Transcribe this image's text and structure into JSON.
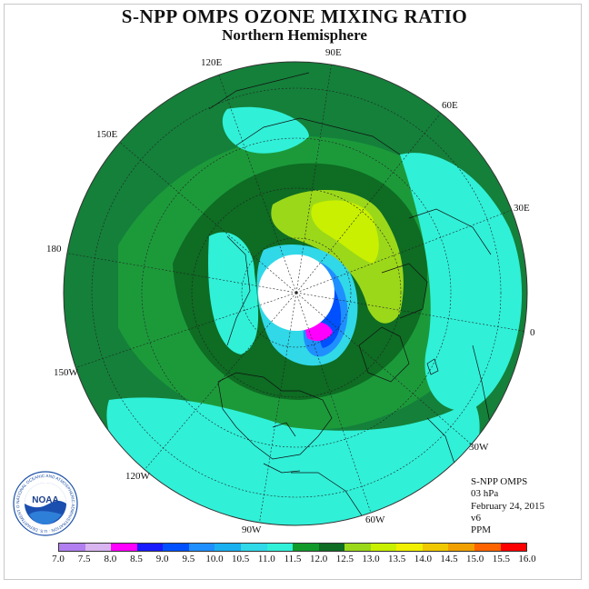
{
  "title": "S-NPP OMPS OZONE MIXING RATIO",
  "subtitle": "Northern Hemisphere",
  "longitude_labels": [
    "90E",
    "60E",
    "30E",
    "0",
    "30W",
    "60W",
    "90W",
    "120W",
    "150W",
    "180",
    "150E",
    "120E"
  ],
  "info": {
    "instrument": "S-NPP OMPS",
    "level": "03 hPa",
    "date": "February 24, 2015",
    "version": "v6",
    "units": "PPM"
  },
  "logo": {
    "name": "NOAA",
    "ring_text": "NATIONAL OCEANIC AND ATMOSPHERIC ADMINISTRATION · U.S. DEPARTMENT OF COMMERCE"
  },
  "colorbar": {
    "labels": [
      "7.0",
      "7.5",
      "8.0",
      "8.5",
      "9.0",
      "9.5",
      "10.0",
      "10.5",
      "11.0",
      "11.5",
      "12.0",
      "12.5",
      "13.0",
      "13.5",
      "14.0",
      "14.5",
      "15.0",
      "15.5",
      "16.0"
    ],
    "colors": [
      "#b27ff0",
      "#d8b4f0",
      "#ff00ff",
      "#1a1aff",
      "#0050ff",
      "#1f8fff",
      "#1ab0f0",
      "#30d8e8",
      "#30f0d8",
      "#119a2a",
      "#0e6c23",
      "#9bd81a",
      "#c8f000",
      "#f0f000",
      "#f0c800",
      "#f0a000",
      "#ff6400",
      "#ff0000",
      "#8a5a3a"
    ]
  },
  "map_colors": {
    "ocean_ring": "#14803a",
    "band_11_5": "#1c9a3a",
    "band_12": "#0e6c23",
    "band_12_5": "#9bd81a",
    "band_13": "#c8f000",
    "band_11": "#30f0d8",
    "band_10_5": "#30d8e8",
    "band_9_5": "#1f8fff",
    "band_9": "#0050ff",
    "band_8_5": "#1a1aff",
    "band_8": "#ff00ff",
    "no_data": "#ffffff"
  }
}
